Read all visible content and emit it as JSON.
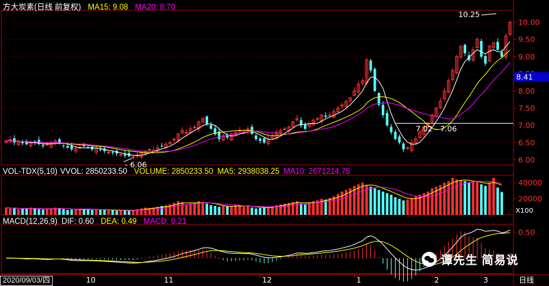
{
  "header_main": {
    "name": "方大炭素(日线 前复权)",
    "ma15": "MA15: 9.08",
    "ma20": "MA20: 8.70"
  },
  "header_vol": {
    "name": "VOL-TDX(5,10)",
    "vvol": "VVOL: 2850233.50",
    "volume": "VOLUME: 2850233.50",
    "ma5": "MA5: 2938038.25",
    "ma10": "MA10: 2671214.75"
  },
  "header_macd": {
    "name": "MACD(12,26,9)",
    "dif": "DIF: 0.60",
    "dea": "DEA: 0.49",
    "macd": "MACD: 0.21"
  },
  "annotations": {
    "high": "10.25",
    "low": "6.06",
    "range": "7.02 - 7.06",
    "current_price": "8.41"
  },
  "price_axis_ticks": [
    "10.00",
    "9.50",
    "9.00",
    "8.50",
    "8.00",
    "7.50",
    "7.00",
    "6.50",
    "6.00"
  ],
  "volume_axis_ticks": [
    "40000",
    "20000"
  ],
  "volume_axis_unit": "X100",
  "macd_axis_ticks": [
    "0.50",
    "0.00"
  ],
  "date_label": "2020/09/03/四",
  "month_labels": [
    "10",
    "11",
    "12",
    "1",
    "2",
    "3"
  ],
  "period_label": "日线",
  "watermark": "谭先生 简易说",
  "colors": {
    "up": "#ff3232",
    "down": "#54ffff",
    "ma_white": "#ffffff",
    "ma_yellow": "#ffff00",
    "ma_magenta": "#ff00ff",
    "frame": "#b00000",
    "grid": "#7a0000"
  },
  "chart_data": {
    "type": "candlestick",
    "price_ylim": [
      5.85,
      10.35
    ],
    "price_ticks": [
      6.0,
      6.5,
      7.0,
      7.5,
      8.0,
      8.5,
      9.0,
      9.5,
      10.0
    ],
    "horizontal_line": 7.06,
    "high_marker": {
      "value": 10.25,
      "index": 120
    },
    "low_marker": {
      "value": 6.06,
      "index": 31
    },
    "closes": [
      6.55,
      6.58,
      6.5,
      6.52,
      6.48,
      6.45,
      6.52,
      6.5,
      6.46,
      6.4,
      6.45,
      6.5,
      6.55,
      6.48,
      6.4,
      6.35,
      6.3,
      6.33,
      6.36,
      6.4,
      6.35,
      6.3,
      6.32,
      6.28,
      6.25,
      6.22,
      6.2,
      6.18,
      6.15,
      6.12,
      6.1,
      6.08,
      6.15,
      6.2,
      6.25,
      6.3,
      6.28,
      6.35,
      6.4,
      6.45,
      6.5,
      6.6,
      6.75,
      6.85,
      6.8,
      6.9,
      6.95,
      7.1,
      7.2,
      7.05,
      6.9,
      6.75,
      6.6,
      6.7,
      6.65,
      6.75,
      6.8,
      6.85,
      6.8,
      6.9,
      6.75,
      6.6,
      6.55,
      6.5,
      6.6,
      6.7,
      6.8,
      6.85,
      6.9,
      6.95,
      7.1,
      7.2,
      7.0,
      6.9,
      7.05,
      7.15,
      7.2,
      7.3,
      7.25,
      7.3,
      7.4,
      7.5,
      7.6,
      7.7,
      7.8,
      8.0,
      8.2,
      8.3,
      8.9,
      8.6,
      8.0,
      7.6,
      7.3,
      7.0,
      6.8,
      6.6,
      6.5,
      6.3,
      6.35,
      6.5,
      6.6,
      6.8,
      6.95,
      7.05,
      7.3,
      7.5,
      7.7,
      8.0,
      8.3,
      8.6,
      9.0,
      9.3,
      9.1,
      8.9,
      9.2,
      9.5,
      9.0,
      8.8,
      9.3,
      9.4,
      9.2,
      9.0,
      9.6,
      10.0
    ],
    "volumes": [
      9000,
      8000,
      8500,
      7000,
      7500,
      8000,
      9000,
      8000,
      7000,
      6500,
      7000,
      8000,
      9000,
      8500,
      7000,
      6000,
      6500,
      7000,
      7500,
      7000,
      6500,
      6000,
      7000,
      6000,
      6500,
      5500,
      6000,
      5000,
      5500,
      6000,
      5000,
      6000,
      7000,
      8000,
      9000,
      8500,
      9000,
      10000,
      11000,
      12000,
      13000,
      15000,
      17000,
      16000,
      13000,
      14000,
      15000,
      17000,
      16000,
      14000,
      12000,
      11000,
      10000,
      11000,
      10500,
      11000,
      12000,
      11000,
      10000,
      12000,
      9000,
      8000,
      8500,
      9000,
      10000,
      11000,
      12000,
      13000,
      14000,
      15000,
      16000,
      17000,
      14000,
      13000,
      15000,
      17000,
      18000,
      20000,
      19000,
      21000,
      23000,
      26000,
      29000,
      31000,
      33000,
      36000,
      38000,
      40000,
      37000,
      35000,
      33000,
      31000,
      29000,
      27000,
      25000,
      22000,
      20000,
      18000,
      19000,
      21000,
      23000,
      25000,
      27000,
      29000,
      33000,
      35000,
      37000,
      40000,
      42000,
      46000,
      44000,
      43000,
      42000,
      40000,
      41000,
      42000,
      38000,
      36000,
      40000,
      46000,
      34000,
      28500
    ],
    "volume_ylim": [
      0,
      46000
    ],
    "volume_ticks": [
      20000,
      40000
    ],
    "macd_ylim": [
      -0.3,
      0.65
    ],
    "macd_ticks": [
      0.0,
      0.5
    ],
    "series": [
      {
        "name": "MA15",
        "color": "#ffff00"
      },
      {
        "name": "MA20",
        "color": "#ff00ff"
      }
    ]
  }
}
